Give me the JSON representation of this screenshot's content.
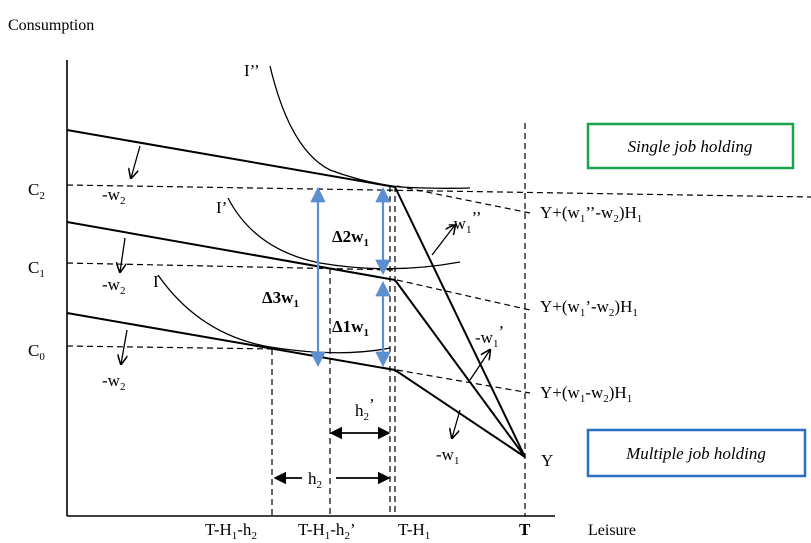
{
  "axes": {
    "y_label": "Consumption",
    "x_label": "Leisure"
  },
  "boxes": {
    "single": {
      "label": "Single job holding",
      "color": "#1aa34a"
    },
    "multiple": {
      "label": "Multiple job holding",
      "color": "#2a6fc0"
    }
  },
  "y_ticks": [
    {
      "base": "C",
      "sub": "2"
    },
    {
      "base": "C",
      "sub": "1"
    },
    {
      "base": "C",
      "sub": "0"
    }
  ],
  "x_ticks": [
    {
      "text": "T-H",
      "sub": "1",
      "text2": "-h",
      "sub2": "2",
      "text3": ""
    },
    {
      "text": "T-H",
      "sub": "1",
      "text2": "-h",
      "sub2": "2",
      "text3": "’"
    },
    {
      "text": "T-H",
      "sub": "1",
      "text2": "",
      "sub2": "",
      "text3": ""
    },
    {
      "text": "T",
      "sub": "",
      "text2": "",
      "sub2": "",
      "text3": ""
    }
  ],
  "indifference_curves": [
    "I’’",
    "I’",
    "I"
  ],
  "slope_labels": {
    "left": [
      {
        "text": "-w",
        "sub": "2"
      },
      {
        "text": "-w",
        "sub": "2"
      },
      {
        "text": "-w",
        "sub": "2"
      }
    ],
    "right": [
      {
        "text": "-w",
        "sub": "1",
        "sup": "’’"
      },
      {
        "text": "-w",
        "sub": "1",
        "sup": "’"
      },
      {
        "text": "-w",
        "sub": "1",
        "sup": ""
      }
    ]
  },
  "income_labels": [
    {
      "a": "Y+(w",
      "s1": "1",
      "b": "’’-w",
      "s2": "2",
      "c": ")H",
      "s3": "1"
    },
    {
      "a": "Y+(w",
      "s1": "1",
      "b": "’-w",
      "s2": "2",
      "c": ")H",
      "s3": "1"
    },
    {
      "a": "Y+(w",
      "s1": "1",
      "b": "-w",
      "s2": "2",
      "c": ")H",
      "s3": "1"
    }
  ],
  "endpoint_label": "Y",
  "deltas": [
    {
      "text": "Δ2w",
      "sub": "1"
    },
    {
      "text": "Δ1w",
      "sub": "1"
    },
    {
      "text": "Δ3w",
      "sub": "1"
    }
  ],
  "gap_labels": [
    {
      "text": "h",
      "sub": "2",
      "sup": "’"
    },
    {
      "text": "h",
      "sub": "2",
      "sup": ""
    }
  ],
  "arrow_color": "#5b8fd0"
}
